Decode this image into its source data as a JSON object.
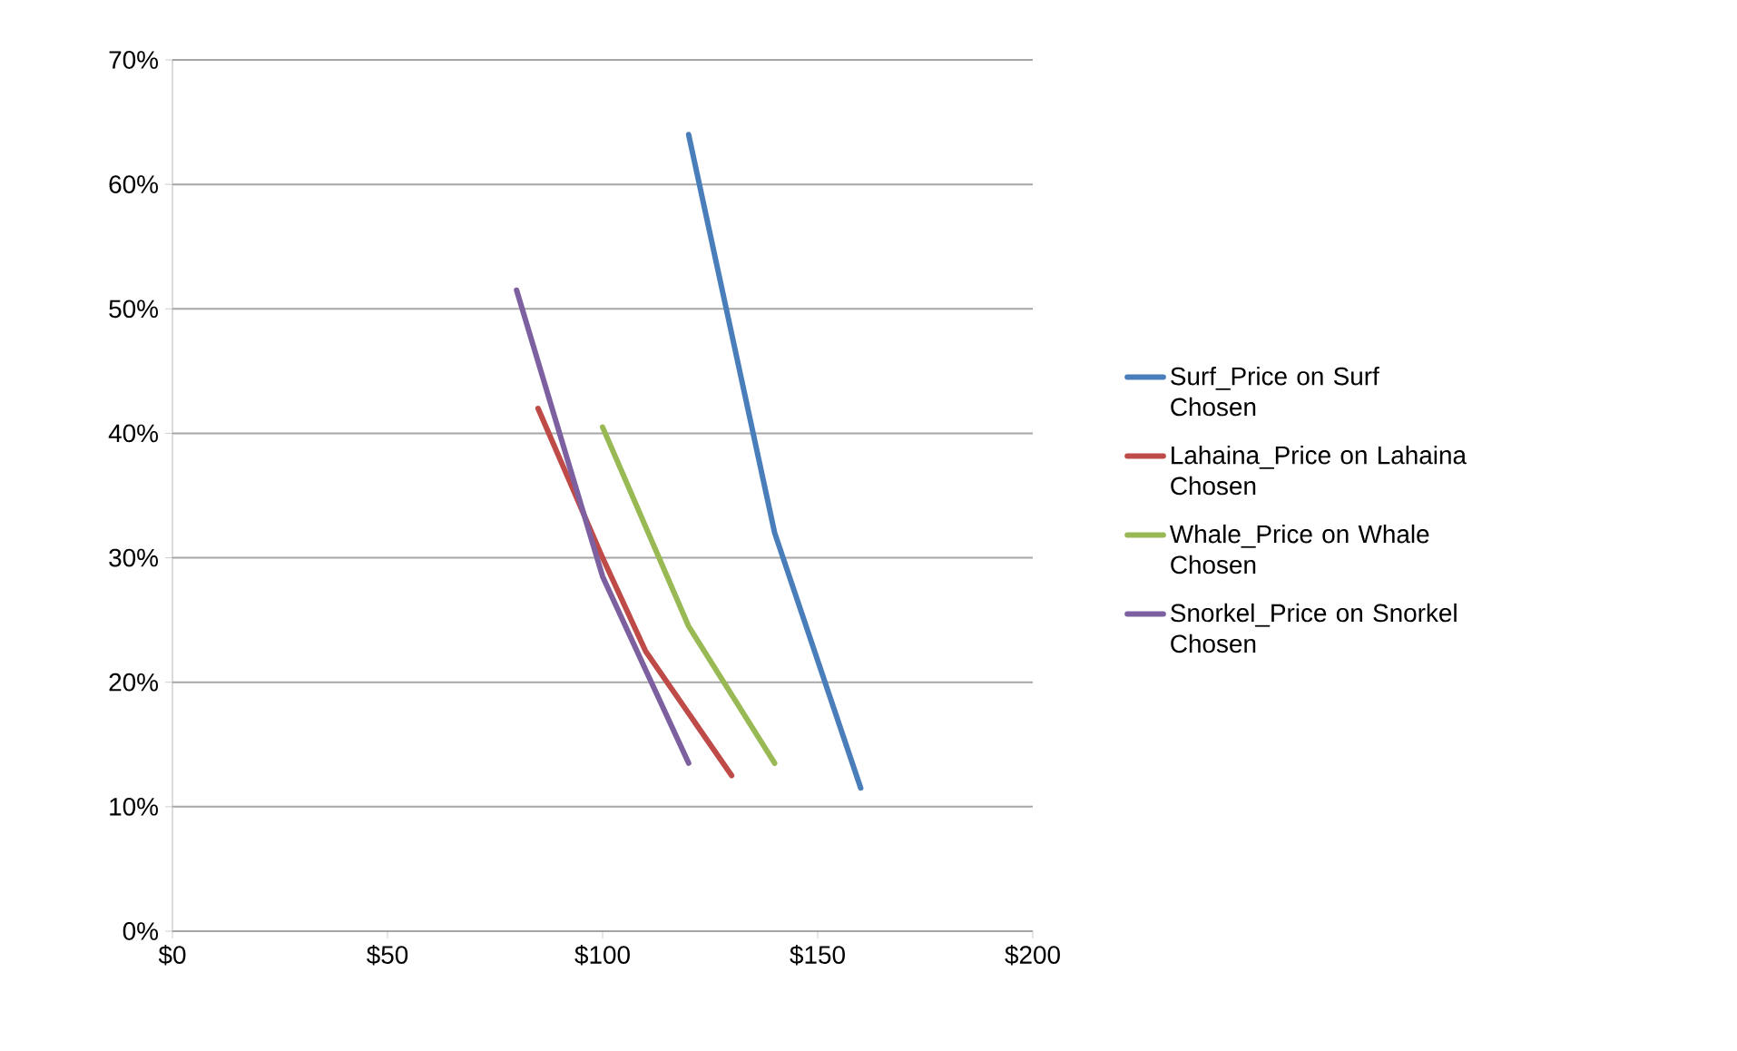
{
  "chart_data": {
    "type": "line",
    "series": [
      {
        "name": "Surf_Price on Surf Chosen",
        "color": "#4a7ebb",
        "x": [
          120,
          140,
          160
        ],
        "values": [
          64,
          32,
          11.5
        ]
      },
      {
        "name": "Lahaina_Price on Lahaina Chosen",
        "color": "#be4b48",
        "x": [
          85,
          100,
          110,
          130
        ],
        "values": [
          42,
          30,
          22.5,
          12.5
        ]
      },
      {
        "name": "Whale_Price on Whale Chosen",
        "color": "#98b954",
        "x": [
          100,
          120,
          140
        ],
        "values": [
          40.5,
          24.5,
          13.5
        ]
      },
      {
        "name": "Snorkel_Price on Snorkel Chosen",
        "color": "#7d60a0",
        "x": [
          80,
          100,
          120
        ],
        "values": [
          51.5,
          28.5,
          13.5
        ]
      }
    ],
    "xlim": [
      0,
      200
    ],
    "xticks": [
      {
        "value": 0,
        "label": "$0"
      },
      {
        "value": 50,
        "label": "$50"
      },
      {
        "value": 100,
        "label": "$100"
      },
      {
        "value": 150,
        "label": "$150"
      },
      {
        "value": 200,
        "label": "$200"
      }
    ],
    "ylim": [
      0,
      70
    ],
    "yticks": [
      {
        "value": 0,
        "label": "0%"
      },
      {
        "value": 10,
        "label": "10%"
      },
      {
        "value": 20,
        "label": "20%"
      },
      {
        "value": 30,
        "label": "30%"
      },
      {
        "value": 40,
        "label": "40%"
      },
      {
        "value": 50,
        "label": "50%"
      },
      {
        "value": 60,
        "label": "60%"
      },
      {
        "value": 70,
        "label": "70%"
      }
    ],
    "grid": "y",
    "legend": "right",
    "marker": "none",
    "line_style": "solid"
  }
}
